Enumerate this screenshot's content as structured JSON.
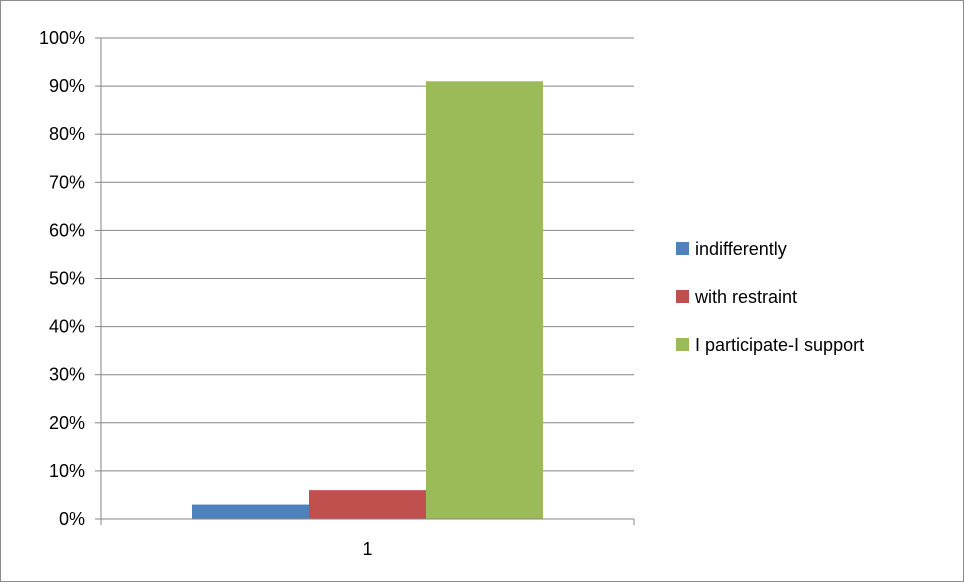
{
  "chart_data": {
    "type": "bar",
    "categories": [
      "1"
    ],
    "series": [
      {
        "name": "indifferently",
        "values": [
          0.03
        ],
        "color": "#4f81bd"
      },
      {
        "name": "with restraint",
        "values": [
          0.06
        ],
        "color": "#c0504d"
      },
      {
        "name": "I participate-I support",
        "values": [
          0.91
        ],
        "color": "#9bbb59"
      }
    ],
    "ylim": [
      0,
      1
    ],
    "yticks": [
      "0%",
      "10%",
      "20%",
      "30%",
      "40%",
      "50%",
      "60%",
      "70%",
      "80%",
      "90%",
      "100%"
    ],
    "grid": true,
    "legend_position": "right",
    "gridline_color": "#868686",
    "axis_color": "#868686"
  }
}
